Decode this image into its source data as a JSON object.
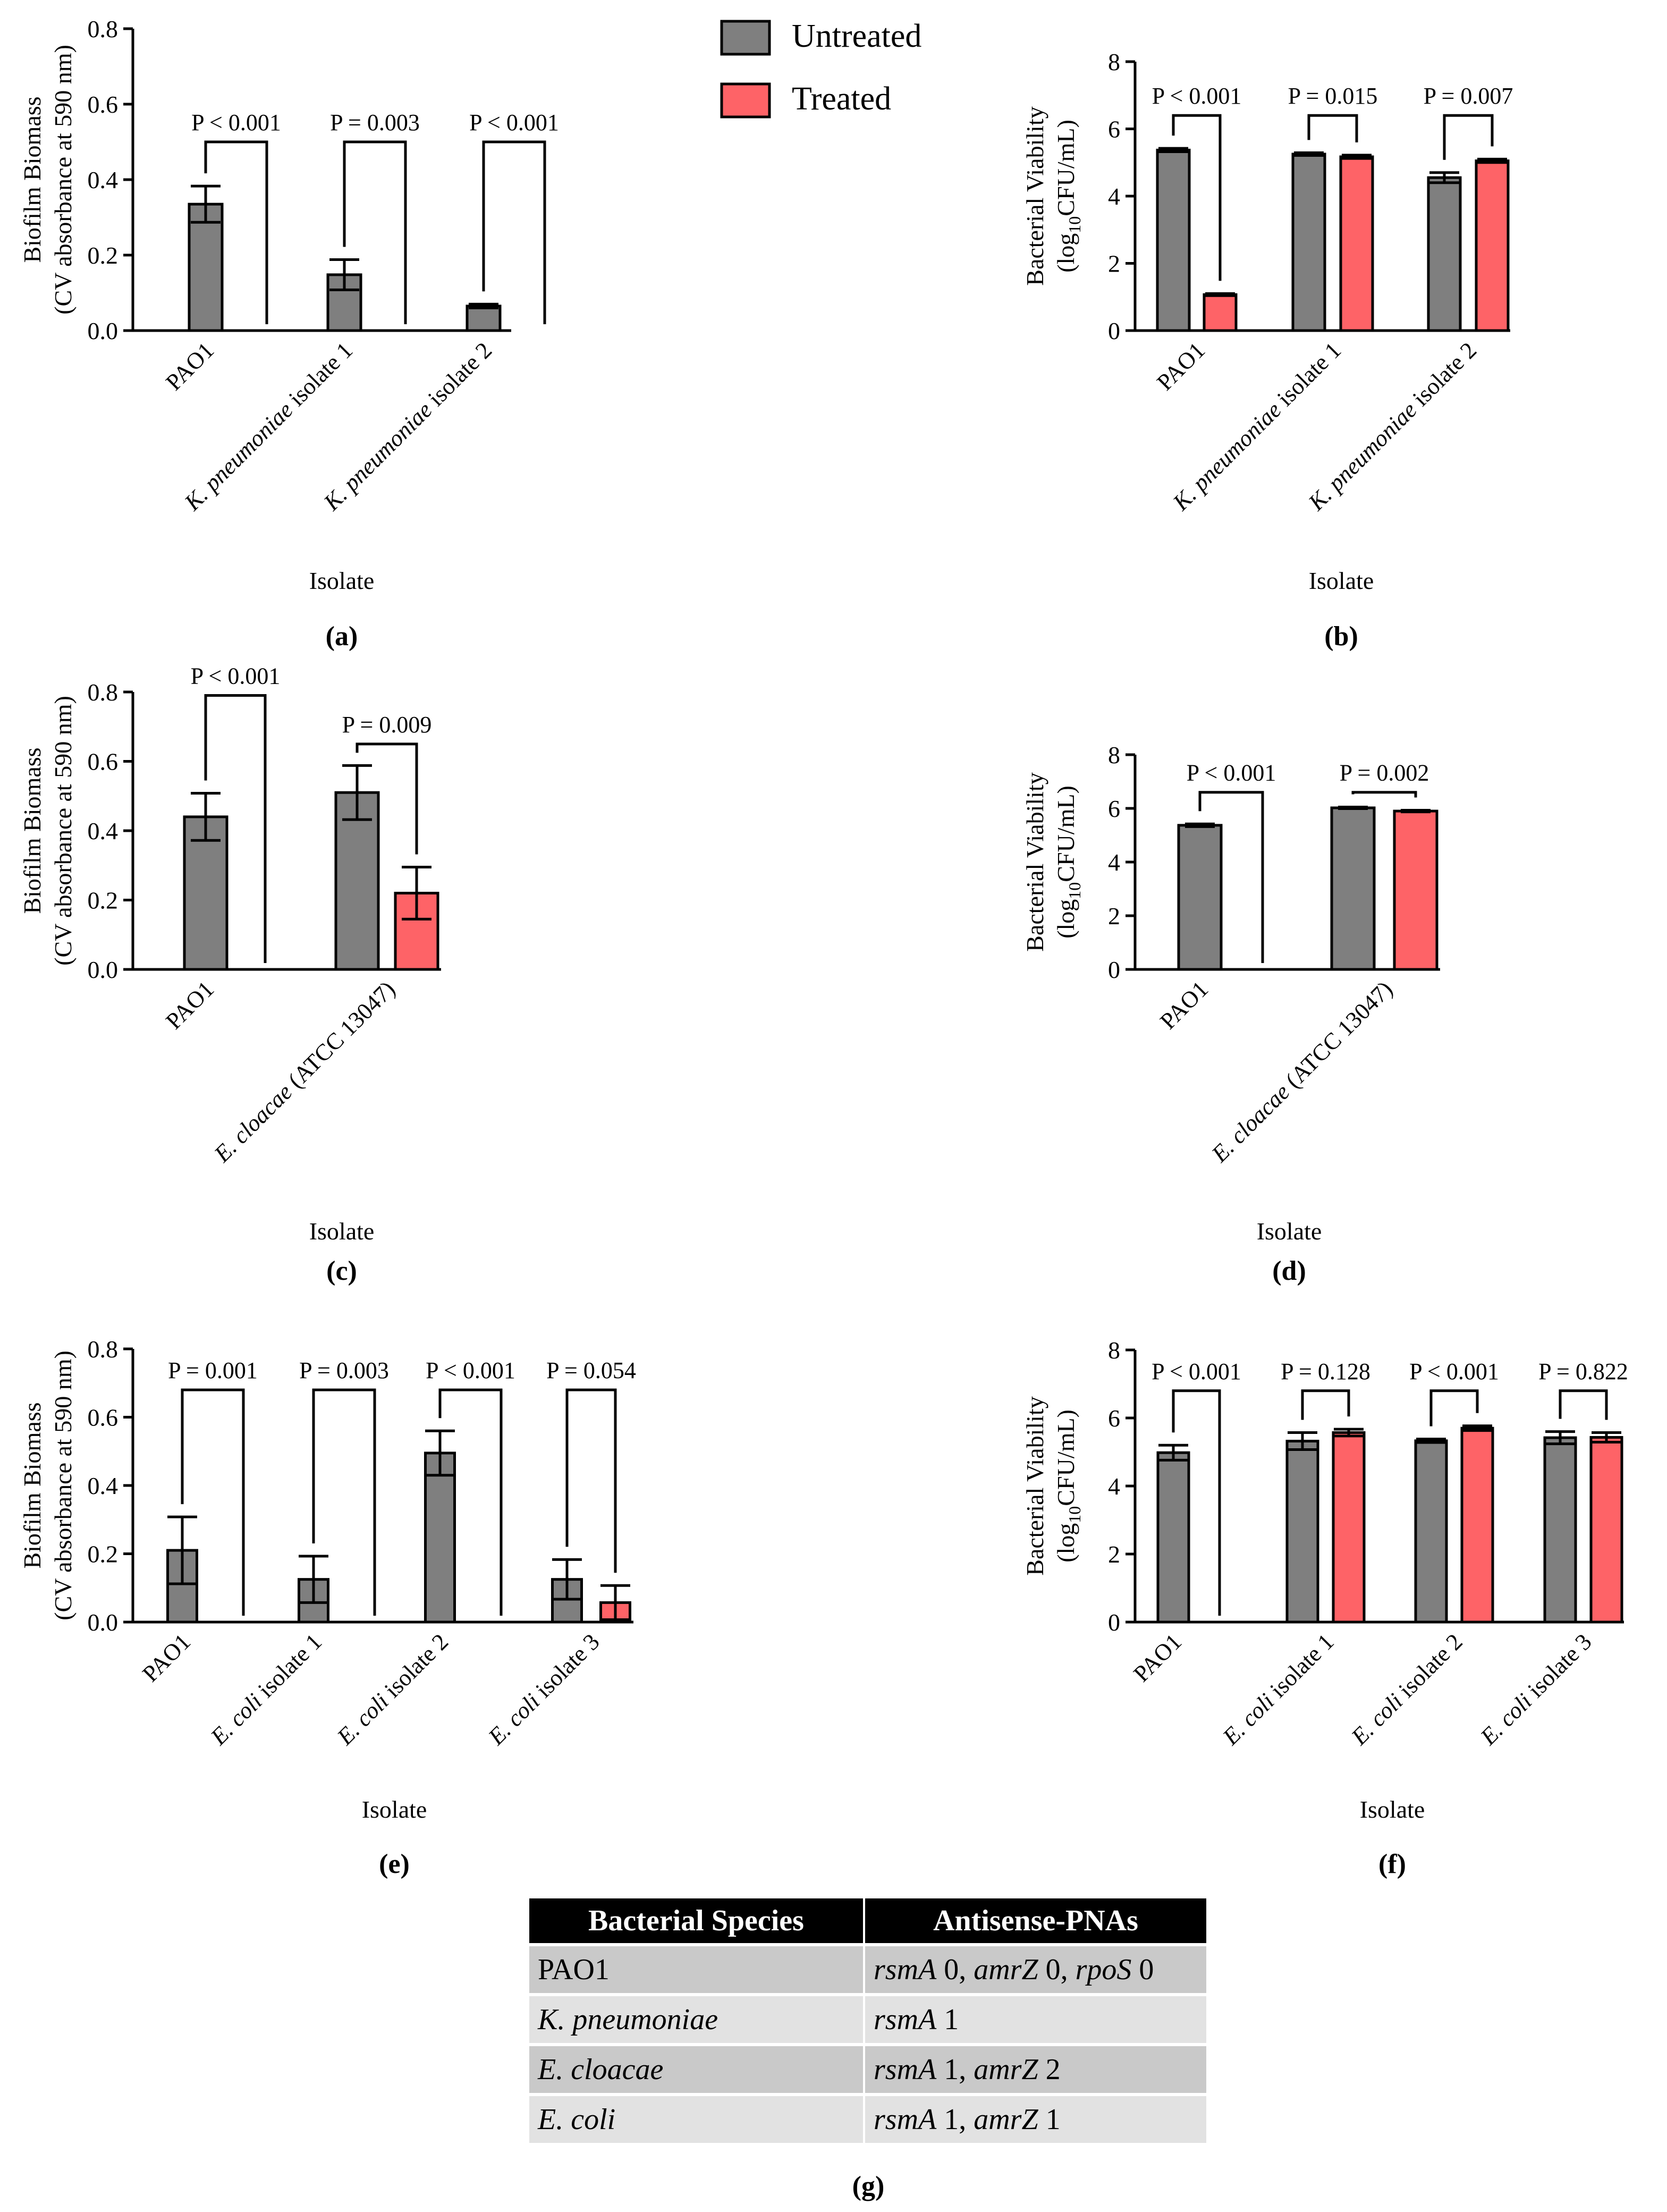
{
  "legend": [
    {
      "label": "Untreated",
      "color": "#7f7f7f"
    },
    {
      "label": "Treated",
      "color": "#fe6367"
    }
  ],
  "colors": {
    "untreated": "#7f7f7f",
    "treated": "#fe6367",
    "stroke": "#000000"
  },
  "chart_data": [
    {
      "id": "a",
      "panel_label": "(a)",
      "type": "bar",
      "xlabel": "Isolate",
      "ylabel": [
        "Biofilm Biomass",
        "(CV absorbance at 590 nm)"
      ],
      "ylim": [
        0,
        0.8
      ],
      "yticks": [
        "0.0",
        "0.2",
        "0.4",
        "0.6",
        "0.8"
      ],
      "categories": [
        [
          {
            "t": "PAO1",
            "i": false
          }
        ],
        [
          {
            "t": "K. pneumoniae",
            "i": true
          },
          {
            "t": " isolate 1",
            "i": false
          }
        ],
        [
          {
            "t": "K. pneumoniae",
            "i": true
          },
          {
            "t": " isolate 2",
            "i": false
          }
        ]
      ],
      "series": [
        {
          "name": "Untreated",
          "values": [
            0.335,
            0.148,
            0.065
          ],
          "errors": [
            0.048,
            0.04,
            0.005
          ]
        },
        {
          "name": "Treated",
          "values": [
            0,
            0,
            0
          ],
          "errors": [
            0,
            0,
            0
          ]
        }
      ],
      "pvalues": [
        "P < 0.001",
        "P = 0.003",
        "P < 0.001"
      ],
      "bracket_y": [
        0.5,
        0.5,
        0.5
      ]
    },
    {
      "id": "b",
      "panel_label": "(b)",
      "type": "bar",
      "xlabel": "Isolate",
      "ylabel": [
        "Bacterial Viability",
        "(log10CFU/mL)"
      ],
      "ylim": [
        0,
        8
      ],
      "yticks": [
        "0",
        "2",
        "4",
        "6",
        "8"
      ],
      "categories": [
        [
          {
            "t": "PAO1",
            "i": false
          }
        ],
        [
          {
            "t": "K. pneumoniae",
            "i": true
          },
          {
            "t": " isolate 1",
            "i": false
          }
        ],
        [
          {
            "t": "K. pneumoniae",
            "i": true
          },
          {
            "t": " isolate 2",
            "i": false
          }
        ]
      ],
      "series": [
        {
          "name": "Untreated",
          "values": [
            5.37,
            5.25,
            4.55
          ],
          "errors": [
            0.05,
            0.04,
            0.15
          ]
        },
        {
          "name": "Treated",
          "values": [
            1.07,
            5.17,
            5.05
          ],
          "errors": [
            0.03,
            0.05,
            0.05
          ]
        }
      ],
      "pvalues": [
        "P < 0.001",
        "P = 0.015",
        "P = 0.007"
      ],
      "bracket_y": [
        6.4,
        6.4,
        6.4
      ]
    },
    {
      "id": "c",
      "panel_label": "(c)",
      "type": "bar",
      "xlabel": "Isolate",
      "ylabel": [
        "Biofilm Biomass",
        "(CV absorbance at 590 nm)"
      ],
      "ylim": [
        0,
        0.8
      ],
      "yticks": [
        "0.0",
        "0.2",
        "0.4",
        "0.6",
        "0.8"
      ],
      "categories": [
        [
          {
            "t": "PAO1",
            "i": false
          }
        ],
        [
          {
            "t": "E. cloacae",
            "i": true
          },
          {
            "t": " (ATCC 13047)",
            "i": false
          }
        ]
      ],
      "series": [
        {
          "name": "Untreated",
          "values": [
            0.44,
            0.51
          ],
          "errors": [
            0.068,
            0.078
          ]
        },
        {
          "name": "Treated",
          "values": [
            0,
            0.22
          ],
          "errors": [
            0,
            0.075
          ]
        }
      ],
      "pvalues": [
        "P < 0.001",
        "P = 0.009"
      ],
      "bracket_y": [
        0.79,
        0.65
      ]
    },
    {
      "id": "d",
      "panel_label": "(d)",
      "type": "bar",
      "xlabel": "Isolate",
      "ylabel": [
        "Bacterial Viability",
        "(log10CFU/mL)"
      ],
      "ylim": [
        0,
        8
      ],
      "yticks": [
        "0",
        "2",
        "4",
        "6",
        "8"
      ],
      "categories": [
        [
          {
            "t": "PAO1",
            "i": false
          }
        ],
        [
          {
            "t": "E. cloacae",
            "i": true
          },
          {
            "t": " (ATCC 13047)",
            "i": false
          }
        ]
      ],
      "series": [
        {
          "name": "Untreated",
          "values": [
            5.37,
            6.02
          ],
          "errors": [
            0.05,
            0.03
          ]
        },
        {
          "name": "Treated",
          "values": [
            0,
            5.9
          ],
          "errors": [
            0,
            0.03
          ]
        }
      ],
      "pvalues": [
        "P < 0.001",
        "P = 0.002"
      ],
      "bracket_y": [
        6.6,
        6.6
      ]
    },
    {
      "id": "e",
      "panel_label": "(e)",
      "type": "bar",
      "xlabel": "Isolate",
      "ylabel": [
        "Biofilm Biomass",
        "(CV absorbance at 590 nm)"
      ],
      "ylim": [
        0,
        0.8
      ],
      "yticks": [
        "0.0",
        "0.2",
        "0.4",
        "0.6",
        "0.8"
      ],
      "categories": [
        [
          {
            "t": "PAO1",
            "i": false
          }
        ],
        [
          {
            "t": "E. coli",
            "i": true
          },
          {
            "t": " isolate 1",
            "i": false
          }
        ],
        [
          {
            "t": "E. coli",
            "i": true
          },
          {
            "t": " isolate 2",
            "i": false
          }
        ],
        [
          {
            "t": "E. coli",
            "i": true
          },
          {
            "t": " isolate 3",
            "i": false
          }
        ]
      ],
      "series": [
        {
          "name": "Untreated",
          "values": [
            0.21,
            0.125,
            0.495,
            0.125
          ],
          "errors": [
            0.098,
            0.068,
            0.065,
            0.058
          ]
        },
        {
          "name": "Treated",
          "values": [
            0,
            0,
            0,
            0.057
          ],
          "errors": [
            0,
            0,
            0,
            0.05
          ]
        }
      ],
      "pvalues": [
        "P = 0.001",
        "P = 0.003",
        "P < 0.001",
        "P = 0.054"
      ],
      "bracket_y": [
        0.68,
        0.68,
        0.68,
        0.68
      ]
    },
    {
      "id": "f",
      "panel_label": "(f)",
      "type": "bar",
      "xlabel": "Isolate",
      "ylabel": [
        "Bacterial Viability",
        "(log10CFU/mL)"
      ],
      "ylim": [
        0,
        8
      ],
      "yticks": [
        "0",
        "2",
        "4",
        "6",
        "8"
      ],
      "categories": [
        [
          {
            "t": "PAO1",
            "i": false
          }
        ],
        [
          {
            "t": "E. coli",
            "i": true
          },
          {
            "t": " isolate 1",
            "i": false
          }
        ],
        [
          {
            "t": "E. coli",
            "i": true
          },
          {
            "t": " isolate 2",
            "i": false
          }
        ],
        [
          {
            "t": "E. coli",
            "i": true
          },
          {
            "t": " isolate 3",
            "i": false
          }
        ]
      ],
      "series": [
        {
          "name": "Untreated",
          "values": [
            4.98,
            5.32,
            5.33,
            5.42
          ],
          "errors": [
            0.22,
            0.25,
            0.05,
            0.18
          ]
        },
        {
          "name": "Treated",
          "values": [
            0,
            5.57,
            5.7,
            5.43
          ],
          "errors": [
            0,
            0.1,
            0.07,
            0.14
          ]
        }
      ],
      "pvalues": [
        "P < 0.001",
        "P = 0.128",
        "P < 0.001",
        "P = 0.822"
      ],
      "bracket_y": [
        6.8,
        6.8,
        6.8,
        6.8
      ]
    }
  ],
  "table": {
    "panel_label": "(g)",
    "headers": [
      "Bacterial Species",
      "Antisense-PNAs"
    ],
    "rows": [
      [
        [
          {
            "t": "PAO1",
            "i": false
          }
        ],
        [
          {
            "t": "rsmA",
            "i": true
          },
          {
            "t": " 0, ",
            "i": false
          },
          {
            "t": "amrZ",
            "i": true
          },
          {
            "t": " 0, ",
            "i": false
          },
          {
            "t": "rpoS",
            "i": true
          },
          {
            "t": " 0",
            "i": false
          }
        ]
      ],
      [
        [
          {
            "t": "K. pneumoniae",
            "i": true
          }
        ],
        [
          {
            "t": "rsmA",
            "i": true
          },
          {
            "t": " 1",
            "i": false
          }
        ]
      ],
      [
        [
          {
            "t": "E. cloacae",
            "i": true
          }
        ],
        [
          {
            "t": "rsmA",
            "i": true
          },
          {
            "t": " 1, ",
            "i": false
          },
          {
            "t": "amrZ",
            "i": true
          },
          {
            "t": " 2",
            "i": false
          }
        ]
      ],
      [
        [
          {
            "t": "E. coli",
            "i": true
          }
        ],
        [
          {
            "t": "rsmA",
            "i": true
          },
          {
            "t": " 1, ",
            "i": false
          },
          {
            "t": "amrZ",
            "i": true
          },
          {
            "t": " 1",
            "i": false
          }
        ]
      ]
    ]
  }
}
